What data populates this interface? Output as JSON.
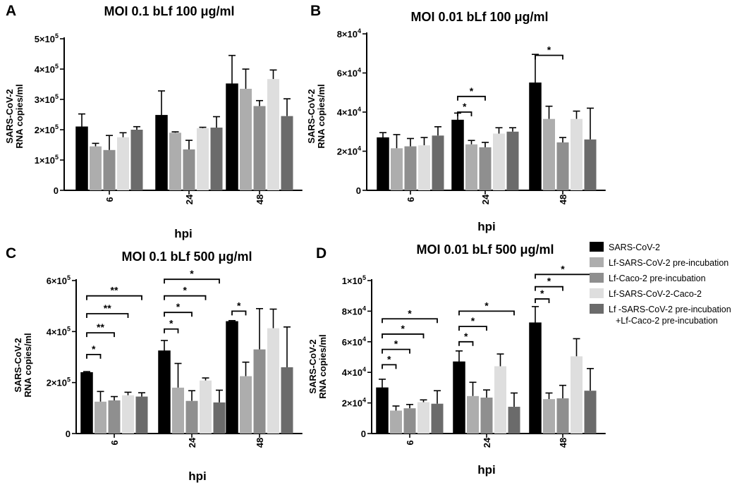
{
  "legend": [
    {
      "label": "SARS-CoV-2",
      "color": "#000000"
    },
    {
      "label": "Lf-SARS-CoV-2 pre-incubation",
      "color": "#adadad"
    },
    {
      "label": "Lf-Caco-2 pre-incubation",
      "color": "#8f8f8f"
    },
    {
      "label": "Lf-SARS-CoV-2-Caco-2",
      "color": "#dedede"
    },
    {
      "label": "Lf -SARS-CoV-2 pre-incubation",
      "label2": "+Lf-Caco-2 pre-incubation",
      "color": "#6b6b6b"
    }
  ],
  "chart_data": [
    {
      "panel": "A",
      "type": "bar",
      "title": "MOI 0.1 bLf 100 μg/ml",
      "xlabel": "hpi",
      "ylabel": [
        "SARS-CoV-2",
        "RNA copies/ml"
      ],
      "categories": [
        "6",
        "24",
        "48"
      ],
      "ylim": [
        0,
        500000
      ],
      "yticks": [
        0,
        100000,
        200000,
        300000,
        400000,
        500000
      ],
      "ytick_labels": [
        "0",
        "1×10^5",
        "2×10^5",
        "3×10^5",
        "4×10^5",
        "5×10^5"
      ],
      "series": [
        {
          "name": "SARS-CoV-2",
          "values": [
            210000,
            248000,
            352000
          ],
          "errors": [
            42000,
            80000,
            93000
          ]
        },
        {
          "name": "Lf-SARS-CoV-2 pre-incubation",
          "values": [
            145000,
            190000,
            335000
          ],
          "errors": [
            10000,
            3000,
            65000
          ]
        },
        {
          "name": "Lf-Caco-2 pre-incubation",
          "values": [
            133000,
            135000,
            278000
          ],
          "errors": [
            48000,
            30000,
            18000
          ]
        },
        {
          "name": "Lf-SARS-CoV-2-Caco-2",
          "values": [
            175000,
            205000,
            367000
          ],
          "errors": [
            15000,
            3000,
            30000
          ]
        },
        {
          "name": "Lf -SARS-CoV-2 pre-incubation +Lf-Caco-2 pre-incubation",
          "values": [
            200000,
            207000,
            245000
          ],
          "errors": [
            10000,
            36000,
            57000
          ]
        }
      ],
      "annotations": []
    },
    {
      "panel": "B",
      "type": "bar",
      "title": "MOI 0.01 bLf 100 μg/ml",
      "xlabel": "hpi",
      "ylabel": [
        "SARS-CoV-2",
        "RNA copies/ml"
      ],
      "categories": [
        "6",
        "24",
        "48"
      ],
      "ylim": [
        0,
        80000
      ],
      "yticks": [
        0,
        20000,
        40000,
        60000,
        80000
      ],
      "ytick_labels": [
        "0",
        "2×10^4",
        "4×10^4",
        "6×10^4",
        "8×10^4"
      ],
      "series": [
        {
          "name": "SARS-CoV-2",
          "values": [
            27000,
            36000,
            55000
          ],
          "errors": [
            2500,
            3500,
            14500
          ]
        },
        {
          "name": "Lf-SARS-CoV-2 pre-incubation",
          "values": [
            21500,
            23500,
            36500
          ],
          "errors": [
            7000,
            2000,
            6500
          ]
        },
        {
          "name": "Lf-Caco-2 pre-incubation",
          "values": [
            22500,
            22000,
            24500
          ],
          "errors": [
            4000,
            2500,
            2500
          ]
        },
        {
          "name": "Lf-SARS-CoV-2-Caco-2",
          "values": [
            23000,
            29000,
            36500
          ],
          "errors": [
            4000,
            3000,
            4000
          ]
        },
        {
          "name": "Lf -SARS-CoV-2 pre-incubation +Lf-Caco-2 pre-incubation",
          "values": [
            28000,
            30000,
            26000
          ],
          "errors": [
            4500,
            2000,
            16000
          ]
        }
      ],
      "annotations": [
        {
          "group": 1,
          "from": 0,
          "to": 1,
          "y": 40000,
          "text": "*"
        },
        {
          "group": 1,
          "from": 0,
          "to": 2,
          "y": 48000,
          "text": "*"
        },
        {
          "group": 2,
          "from": 0,
          "to": 2,
          "y": 69000,
          "text": "*"
        }
      ]
    },
    {
      "panel": "C",
      "type": "bar",
      "title": "MOI 0.1 bLf 500 μg/ml",
      "xlabel": "hpi",
      "ylabel": [
        "SARS-CoV-2",
        "RNA copies/ml"
      ],
      "categories": [
        "6",
        "24",
        "48"
      ],
      "ylim": [
        0,
        600000
      ],
      "yticks": [
        0,
        200000,
        400000,
        600000
      ],
      "ytick_labels": [
        "0",
        "2×10^5",
        "4×10^5",
        "6×10^5"
      ],
      "series": [
        {
          "name": "SARS-CoV-2",
          "values": [
            240000,
            325000,
            440000
          ],
          "errors": [
            3000,
            40000,
            3000
          ]
        },
        {
          "name": "Lf-SARS-CoV-2 pre-incubation",
          "values": [
            125000,
            180000,
            225000
          ],
          "errors": [
            40000,
            95000,
            55000
          ]
        },
        {
          "name": "Lf-Caco-2 pre-incubation",
          "values": [
            130000,
            128000,
            330000
          ],
          "errors": [
            15000,
            40000,
            160000
          ]
        },
        {
          "name": "Lf-SARS-CoV-2-Caco-2",
          "values": [
            150000,
            208000,
            413000
          ],
          "errors": [
            12000,
            10000,
            75000
          ]
        },
        {
          "name": "Lf -SARS-CoV-2 pre-incubation +Lf-Caco-2 pre-incubation",
          "values": [
            145000,
            122000,
            260000
          ],
          "errors": [
            15000,
            48000,
            158000
          ]
        }
      ],
      "annotations": [
        {
          "group": 0,
          "from": 0,
          "to": 1,
          "y": 310000,
          "text": "*"
        },
        {
          "group": 0,
          "from": 0,
          "to": 2,
          "y": 395000,
          "text": "**"
        },
        {
          "group": 0,
          "from": 0,
          "to": 3,
          "y": 470000,
          "text": "**"
        },
        {
          "group": 0,
          "from": 0,
          "to": 4,
          "y": 540000,
          "text": "**"
        },
        {
          "group": 1,
          "from": 0,
          "to": 1,
          "y": 410000,
          "text": "*"
        },
        {
          "group": 1,
          "from": 0,
          "to": 2,
          "y": 475000,
          "text": "*"
        },
        {
          "group": 1,
          "from": 0,
          "to": 3,
          "y": 540000,
          "text": "*"
        },
        {
          "group": 1,
          "from": 0,
          "to": 4,
          "y": 605000,
          "text": "*"
        },
        {
          "group": 2,
          "from": 0,
          "to": 1,
          "y": 480000,
          "text": "*"
        }
      ]
    },
    {
      "panel": "D",
      "type": "bar",
      "title": "MOI 0.01 bLf 500 μg/ml",
      "xlabel": "hpi",
      "ylabel": [
        "SARS-CoV-2",
        "RNA copies/ml"
      ],
      "categories": [
        "6",
        "24",
        "48"
      ],
      "ylim": [
        0,
        100000
      ],
      "yticks": [
        0,
        20000,
        40000,
        60000,
        80000,
        100000
      ],
      "ytick_labels": [
        "0",
        "2×10^4",
        "4×10^4",
        "6×10^4",
        "8×10^4",
        "1×10^5"
      ],
      "series": [
        {
          "name": "SARS-CoV-2",
          "values": [
            30000,
            47000,
            72500
          ],
          "errors": [
            5500,
            7000,
            10500
          ]
        },
        {
          "name": "Lf-SARS-CoV-2 pre-incubation",
          "values": [
            15000,
            24500,
            22500
          ],
          "errors": [
            3000,
            9000,
            4000
          ]
        },
        {
          "name": "Lf-Caco-2 pre-incubation",
          "values": [
            16500,
            23500,
            23000
          ],
          "errors": [
            2500,
            5000,
            8500
          ]
        },
        {
          "name": "Lf-SARS-CoV-2-Caco-2",
          "values": [
            20500,
            44000,
            50500
          ],
          "errors": [
            1500,
            8000,
            11500
          ]
        },
        {
          "name": "Lf -SARS-CoV-2 pre-incubation +Lf-Caco-2 pre-incubation",
          "values": [
            19500,
            17500,
            28000
          ],
          "errors": [
            8500,
            9000,
            14500
          ]
        }
      ],
      "annotations": [
        {
          "group": 0,
          "from": 0,
          "to": 1,
          "y": 45000,
          "text": "*"
        },
        {
          "group": 0,
          "from": 0,
          "to": 2,
          "y": 55000,
          "text": "*"
        },
        {
          "group": 0,
          "from": 0,
          "to": 3,
          "y": 65000,
          "text": "*"
        },
        {
          "group": 0,
          "from": 0,
          "to": 4,
          "y": 75000,
          "text": "*"
        },
        {
          "group": 1,
          "from": 0,
          "to": 1,
          "y": 60000,
          "text": "*"
        },
        {
          "group": 1,
          "from": 0,
          "to": 2,
          "y": 70000,
          "text": "*"
        },
        {
          "group": 1,
          "from": 0,
          "to": 4,
          "y": 80000,
          "text": "*"
        },
        {
          "group": 2,
          "from": 0,
          "to": 1,
          "y": 88000,
          "text": "*"
        },
        {
          "group": 2,
          "from": 0,
          "to": 2,
          "y": 96000,
          "text": "*"
        },
        {
          "group": 2,
          "from": 0,
          "to": 4,
          "y": 104000,
          "text": "*"
        }
      ]
    }
  ]
}
